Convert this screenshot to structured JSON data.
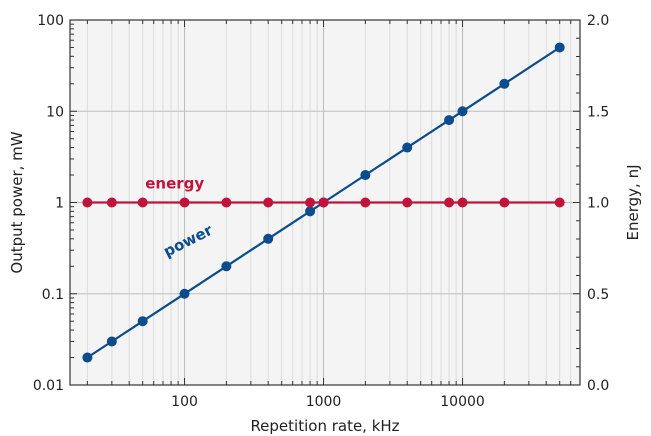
{
  "chart_data": {
    "type": "line",
    "xlabel": "Repetition rate, kHz",
    "ylabel": "Output power, mW",
    "y2label": "Energy, nJ",
    "xscale": "log",
    "yscale": "log",
    "xlim": [
      15,
      70000
    ],
    "ylim": [
      0.01,
      100
    ],
    "y2lim": [
      0.0,
      2.0
    ],
    "grid": true,
    "xticks": [
      "100",
      "1000",
      "10000"
    ],
    "yticks": [
      "0.01",
      "0.1",
      "1",
      "10",
      "100"
    ],
    "y2ticks": [
      "0.0",
      "0.5",
      "1.0",
      "1.5",
      "2.0"
    ],
    "series": [
      {
        "name": "power",
        "axis": "left",
        "color": "#0a4c8c",
        "x": [
          20,
          30,
          50,
          100,
          200,
          400,
          800,
          1000,
          2000,
          4000,
          8000,
          10000,
          20000,
          50000
        ],
        "y": [
          0.02,
          0.03,
          0.05,
          0.1,
          0.2,
          0.4,
          0.8,
          1.0,
          2.0,
          4.0,
          8.0,
          10.0,
          20.0,
          50.0
        ]
      },
      {
        "name": "energy",
        "axis": "right",
        "color": "#c0143c",
        "x": [
          20,
          30,
          50,
          100,
          200,
          400,
          800,
          1000,
          2000,
          4000,
          8000,
          10000,
          20000,
          50000
        ],
        "y": [
          1.0,
          1.0,
          1.0,
          1.0,
          1.0,
          1.0,
          1.0,
          1.0,
          1.0,
          1.0,
          1.0,
          1.0,
          1.0,
          1.0
        ]
      }
    ]
  }
}
